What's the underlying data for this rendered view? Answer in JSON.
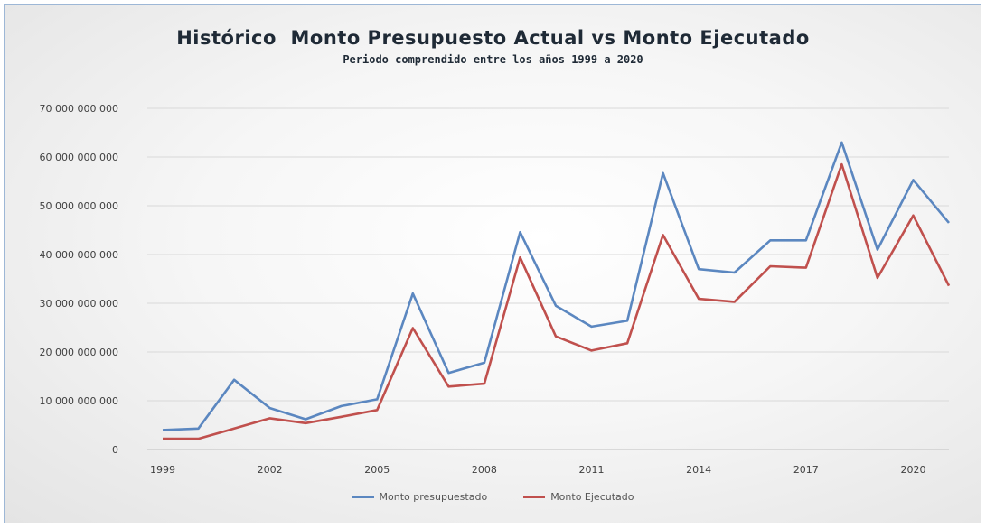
{
  "chart_data": {
    "type": "line",
    "title": "Histórico  Monto Presupuesto Actual vs Monto Ejecutado",
    "subtitle": "Periodo comprendido entre los años 1999 a 2020",
    "x": [
      1999,
      2000,
      2001,
      2002,
      2003,
      2004,
      2005,
      2006,
      2007,
      2008,
      2009,
      2010,
      2011,
      2012,
      2013,
      2014,
      2015,
      2016,
      2017,
      2018,
      2019,
      2020,
      2021
    ],
    "x_tick_labels": [
      "1999",
      "2002",
      "2005",
      "2008",
      "2011",
      "2014",
      "2017",
      "2020"
    ],
    "y_tick_labels": [
      "0",
      "10 000 000 000",
      "20 000 000 000",
      "30 000 000 000",
      "40 000 000 000",
      "50 000 000 000",
      "60 000 000 000",
      "70 000 000 000"
    ],
    "ylim": [
      0,
      70000000000
    ],
    "grid": "horizontal",
    "legend_position": "bottom",
    "series": [
      {
        "name": "Monto presupuestado",
        "color": "#5b87c0",
        "values": [
          4000000000,
          4300000000,
          14300000000,
          8500000000,
          6200000000,
          8900000000,
          10300000000,
          32000000000,
          15700000000,
          17800000000,
          44600000000,
          29500000000,
          25200000000,
          26400000000,
          56700000000,
          37000000000,
          36300000000,
          42900000000,
          42900000000,
          63000000000,
          41000000000,
          55300000000,
          46500000000
        ]
      },
      {
        "name": "Monto Ejecutado",
        "color": "#c0504d",
        "values": [
          2200000000,
          2200000000,
          4300000000,
          6400000000,
          5400000000,
          6700000000,
          8100000000,
          24900000000,
          12900000000,
          13500000000,
          39400000000,
          23200000000,
          20300000000,
          21800000000,
          44000000000,
          30900000000,
          30300000000,
          37600000000,
          37300000000,
          58500000000,
          35200000000,
          48000000000,
          33600000000
        ]
      }
    ]
  }
}
